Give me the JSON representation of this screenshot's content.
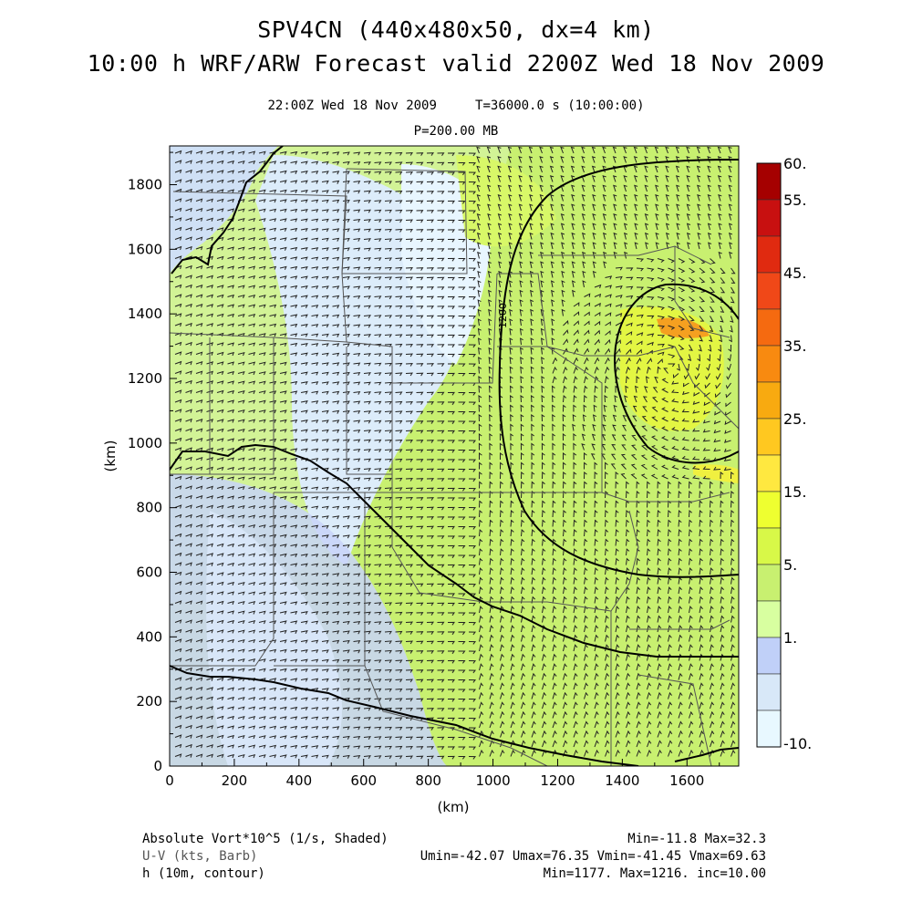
{
  "title_line1": "SPV4CN (440x480x50, dx=4 km)",
  "title_line2": "10:00 h WRF/ARW Forecast valid 2200Z Wed 18 Nov 2009",
  "subtitle_line1": "22:00Z Wed 18 Nov 2009     T=36000.0 s (10:00:00)",
  "subtitle_line2": "P=200.00 MB",
  "axes": {
    "x_unit": "(km)",
    "y_unit": "(km)",
    "x_ticks": [
      "0",
      "200",
      "400",
      "600",
      "800",
      "1000",
      "1200",
      "1400",
      "1600"
    ],
    "y_ticks": [
      "0",
      "200",
      "400",
      "600",
      "800",
      "1000",
      "1200",
      "1400",
      "1600",
      "1800"
    ],
    "x_range_km": [
      0,
      1760
    ],
    "y_range_km": [
      0,
      1920
    ]
  },
  "contour_label": "1200",
  "colorbar": {
    "labels": [
      "60.",
      "55.",
      "45.",
      "35.",
      "25.",
      "15.",
      "5.",
      "1.",
      "-10."
    ],
    "colors": [
      "#a50000",
      "#c81010",
      "#e02a10",
      "#f04818",
      "#f56a10",
      "#f88a10",
      "#f8aa10",
      "#ffc820",
      "#ffe840",
      "#eeff30",
      "#d8f848",
      "#c8f070",
      "#d8ffa0",
      "#c0d0f8",
      "#d8e8f8",
      "#e8f8ff"
    ]
  },
  "footer": {
    "left1": "Absolute Vort*10^5 (1/s, Shaded)",
    "left2": "U-V (kts, Barb)",
    "left3": "h (10m, contour)",
    "right1": "Min=-11.8 Max=32.3",
    "right2": "Umin=-42.07 Umax=76.35 Vmin=-41.45 Vmax=69.63",
    "right3": "Min=1177. Max=1216. inc=10.00"
  },
  "colors": {
    "green": "#c8f070",
    "light_green": "#d8f868",
    "blue": "#c8d4f8",
    "light_blue": "#dcecfa",
    "yellow": "#f0f040",
    "orange": "#f5a020"
  }
}
